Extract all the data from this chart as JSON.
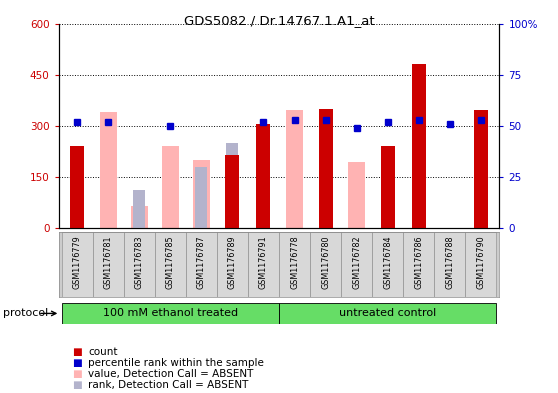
{
  "title": "GDS5082 / Dr.14767.1.A1_at",
  "samples": [
    "GSM1176779",
    "GSM1176781",
    "GSM1176783",
    "GSM1176785",
    "GSM1176787",
    "GSM1176789",
    "GSM1176791",
    "GSM1176778",
    "GSM1176780",
    "GSM1176782",
    "GSM1176784",
    "GSM1176786",
    "GSM1176788",
    "GSM1176790"
  ],
  "count_values": [
    240,
    0,
    0,
    0,
    0,
    215,
    305,
    0,
    350,
    0,
    240,
    480,
    0,
    345
  ],
  "percentile_rank": [
    52,
    52,
    null,
    50,
    null,
    null,
    52,
    53,
    53,
    49,
    52,
    53,
    51,
    53
  ],
  "absent_value": [
    null,
    340,
    65,
    240,
    200,
    null,
    null,
    345,
    null,
    195,
    null,
    null,
    null,
    null
  ],
  "absent_rank": [
    null,
    null,
    112,
    null,
    178,
    250,
    null,
    null,
    null,
    null,
    null,
    null,
    null,
    null
  ],
  "group1_count": 7,
  "group1_label": "100 mM ethanol treated",
  "group2_label": "untreated control",
  "ylim_left": [
    0,
    600
  ],
  "ylim_right": [
    0,
    100
  ],
  "yticks_left": [
    0,
    150,
    300,
    450,
    600
  ],
  "yticks_right": [
    0,
    25,
    50,
    75,
    100
  ],
  "bar_color_count": "#cc0000",
  "bar_color_absent_value": "#ffb3b3",
  "bar_color_absent_rank": "#b3b3cc",
  "dot_color_percentile": "#0000cc",
  "green_fill": "#66dd66",
  "protocol_label": "protocol",
  "legend_items": [
    {
      "color": "#cc0000",
      "label": "count"
    },
    {
      "color": "#0000cc",
      "label": "percentile rank within the sample"
    },
    {
      "color": "#ffb3b3",
      "label": "value, Detection Call = ABSENT"
    },
    {
      "color": "#b3b3cc",
      "label": "rank, Detection Call = ABSENT"
    }
  ]
}
